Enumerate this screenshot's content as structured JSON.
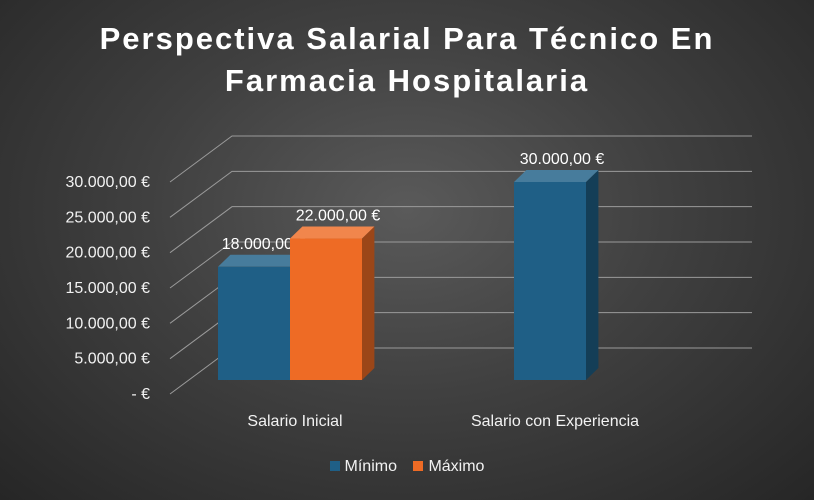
{
  "chart_data": {
    "type": "bar",
    "title": "Perspectiva Salarial Para Técnico En Farmacia Hospitalaria",
    "title_lines": [
      "Perspectiva Salarial Para Técnico En",
      "Farmacia Hospitalaria"
    ],
    "categories": [
      "Salario Inicial",
      "Salario con Experiencia"
    ],
    "series": [
      {
        "name": "Mínimo",
        "color": "#1f5f86",
        "values": [
          18000,
          30000
        ],
        "labels": [
          "18.000,00 €",
          "30.000,00 €"
        ]
      },
      {
        "name": "Máximo",
        "color": "#ee6b25",
        "values": [
          22000,
          null
        ],
        "labels": [
          "22.000,00 €",
          null
        ]
      }
    ],
    "ylim": [
      0,
      30000
    ],
    "yticks": [
      0,
      5000,
      10000,
      15000,
      20000,
      25000,
      30000
    ],
    "ytick_labels": [
      "-  €",
      "5.000,00 €",
      "10.000,00 €",
      "15.000,00 €",
      "20.000,00 €",
      "25.000,00 €",
      "30.000,00 €"
    ],
    "grid": true,
    "legend_position": "bottom",
    "style": "3d-clustered-column"
  }
}
